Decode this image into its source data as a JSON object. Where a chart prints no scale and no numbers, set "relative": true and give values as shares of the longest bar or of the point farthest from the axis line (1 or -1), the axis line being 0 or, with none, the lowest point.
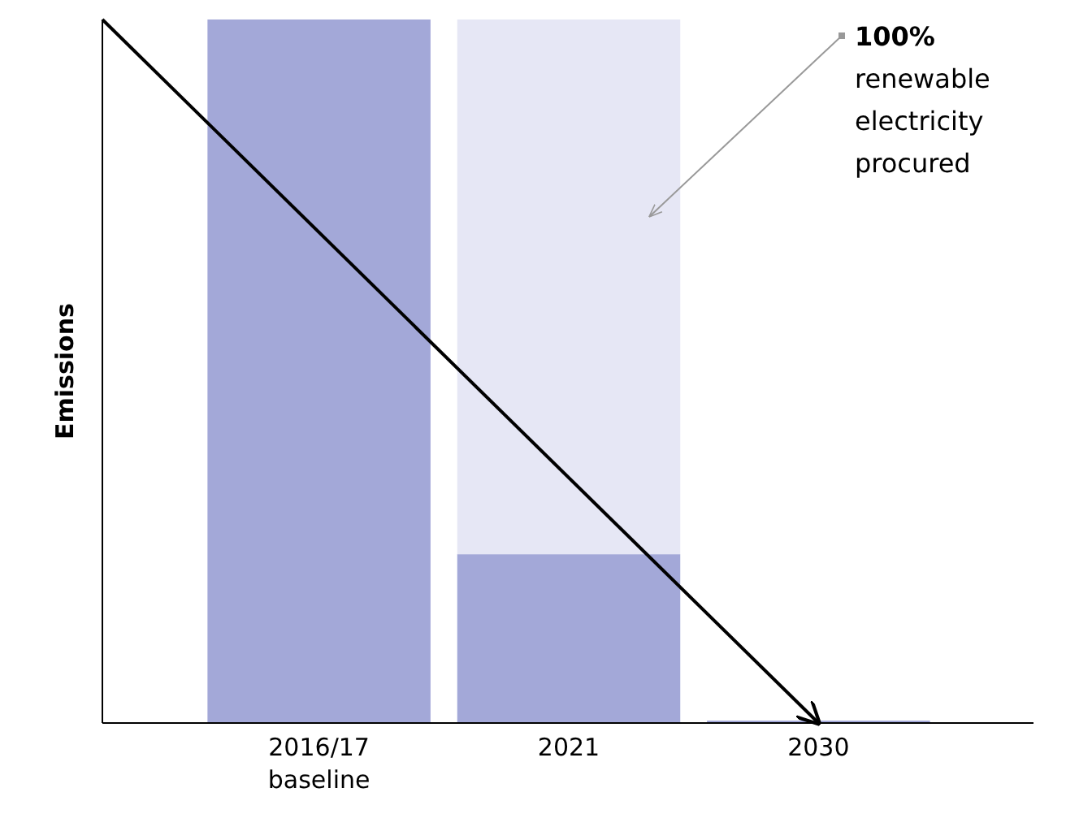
{
  "chart_data": {
    "type": "bar",
    "relative": true,
    "stacked": true,
    "ylabel": "Emissions",
    "categories": [
      "2016/17 baseline",
      "2021",
      "2030"
    ],
    "series": [
      {
        "color": "#a3a8d8",
        "values": [
          1,
          0.24,
          0
        ]
      },
      {
        "color": "#e6e7f5",
        "values": [
          null,
          0.76,
          null
        ]
      }
    ],
    "annotations": [
      "100% renewable electricity procured"
    ]
  }
}
